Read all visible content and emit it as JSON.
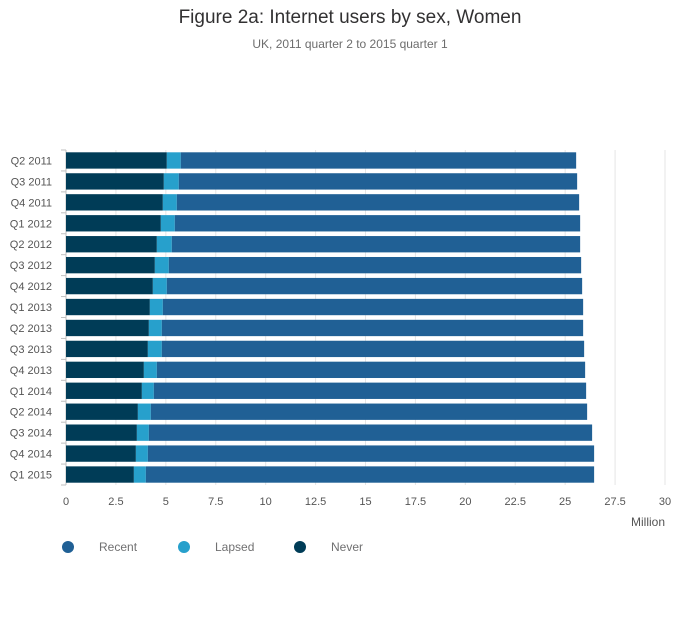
{
  "chart_data": {
    "type": "bar",
    "orientation": "horizontal",
    "stacked": true,
    "title": "Figure 2a: Internet users by sex, Women",
    "subtitle": "UK, 2011 quarter 2 to 2015 quarter 1",
    "xlabel": "Million",
    "ylabel": "",
    "xlim": [
      0,
      30
    ],
    "xticks": [
      "0",
      "2.5",
      "5",
      "7.5",
      "10",
      "12.5",
      "15",
      "17.5",
      "20",
      "22.5",
      "25",
      "27.5",
      "30"
    ],
    "categories": [
      "Q2 2011",
      "Q3 2011",
      "Q4 2011",
      "Q1 2012",
      "Q2 2012",
      "Q3 2012",
      "Q4 2012",
      "Q1 2013",
      "Q2 2013",
      "Q3 2013",
      "Q4 2013",
      "Q1 2014",
      "Q2 2014",
      "Q3 2014",
      "Q4 2014",
      "Q1 2015"
    ],
    "series": [
      {
        "name": "Never",
        "color": "#003c57",
        "values": [
          5.05,
          4.9,
          4.85,
          4.75,
          4.55,
          4.45,
          4.35,
          4.2,
          4.15,
          4.1,
          3.9,
          3.8,
          3.6,
          3.55,
          3.5,
          3.4
        ]
      },
      {
        "name": "Lapsed",
        "color": "#27a0cc",
        "values": [
          0.7,
          0.75,
          0.7,
          0.7,
          0.75,
          0.7,
          0.7,
          0.65,
          0.65,
          0.7,
          0.65,
          0.6,
          0.65,
          0.6,
          0.6,
          0.6
        ]
      },
      {
        "name": "Recent",
        "color": "#206095",
        "values": [
          19.8,
          19.95,
          20.15,
          20.3,
          20.45,
          20.65,
          20.8,
          21.05,
          21.1,
          21.15,
          21.45,
          21.65,
          21.85,
          22.2,
          22.35,
          22.45
        ]
      }
    ],
    "legend": [
      {
        "name": "Recent",
        "color": "#206095"
      },
      {
        "name": "Lapsed",
        "color": "#27a0cc"
      },
      {
        "name": "Never",
        "color": "#003c57"
      }
    ],
    "grid": true,
    "legend_position": "bottom-left"
  }
}
